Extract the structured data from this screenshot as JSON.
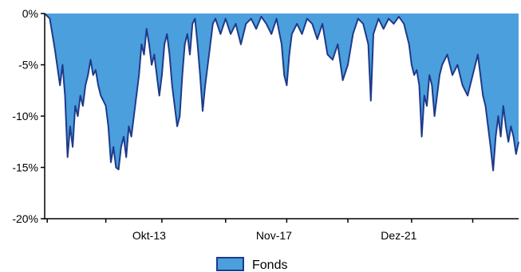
{
  "chart_data": {
    "type": "area",
    "title": "",
    "xlabel": "",
    "ylabel": "",
    "ylim": [
      -20,
      0
    ],
    "grid": false,
    "legend_position": "bottom-center",
    "y_ticks": [
      {
        "value": 0,
        "label": "0%"
      },
      {
        "value": -5,
        "label": "-5%"
      },
      {
        "value": -10,
        "label": "-10%"
      },
      {
        "value": -15,
        "label": "-15%"
      },
      {
        "value": -20,
        "label": "-20%"
      }
    ],
    "x_ticks": [
      {
        "date": "2013-10",
        "label": "Okt-13"
      },
      {
        "date": "2017-11",
        "label": "Nov-17"
      },
      {
        "date": "2021-12",
        "label": "Dez-21"
      }
    ],
    "x_minor_ticks": [
      "2010-01",
      "2011-12",
      "2015-11",
      "2019-11",
      "2023-12"
    ],
    "xlim": [
      "2009-12",
      "2025-06"
    ],
    "series": [
      {
        "name": "Fonds",
        "fill_color": "#4a9fdc",
        "line_color": "#1f3a8a",
        "points": [
          [
            "2009-12",
            0
          ],
          [
            "2010-02",
            -0.5
          ],
          [
            "2010-04",
            -3.5
          ],
          [
            "2010-06",
            -7
          ],
          [
            "2010-07",
            -5
          ],
          [
            "2010-08",
            -8
          ],
          [
            "2010-09",
            -14
          ],
          [
            "2010-10",
            -11
          ],
          [
            "2010-11",
            -13
          ],
          [
            "2010-12",
            -9
          ],
          [
            "2011-01",
            -10
          ],
          [
            "2011-02",
            -8
          ],
          [
            "2011-03",
            -9
          ],
          [
            "2011-04",
            -7
          ],
          [
            "2011-05",
            -6
          ],
          [
            "2011-06",
            -4.5
          ],
          [
            "2011-07",
            -6
          ],
          [
            "2011-08",
            -5.5
          ],
          [
            "2011-09",
            -7
          ],
          [
            "2011-10",
            -8
          ],
          [
            "2011-11",
            -8.5
          ],
          [
            "2011-12",
            -9
          ],
          [
            "2012-01",
            -11
          ],
          [
            "2012-02",
            -14.5
          ],
          [
            "2012-03",
            -13
          ],
          [
            "2012-04",
            -15
          ],
          [
            "2012-05",
            -15.2
          ],
          [
            "2012-06",
            -13
          ],
          [
            "2012-07",
            -12
          ],
          [
            "2012-08",
            -14
          ],
          [
            "2012-09",
            -11
          ],
          [
            "2012-10",
            -12
          ],
          [
            "2012-11",
            -10
          ],
          [
            "2012-12",
            -8
          ],
          [
            "2013-01",
            -6
          ],
          [
            "2013-02",
            -3
          ],
          [
            "2013-03",
            -4
          ],
          [
            "2013-04",
            -1.5
          ],
          [
            "2013-05",
            -3
          ],
          [
            "2013-06",
            -5
          ],
          [
            "2013-07",
            -4
          ],
          [
            "2013-08",
            -6
          ],
          [
            "2013-09",
            -8
          ],
          [
            "2013-10",
            -6
          ],
          [
            "2013-11",
            -3
          ],
          [
            "2013-12",
            -2
          ],
          [
            "2014-01",
            -4
          ],
          [
            "2014-02",
            -7
          ],
          [
            "2014-03",
            -9
          ],
          [
            "2014-04",
            -11
          ],
          [
            "2014-05",
            -10
          ],
          [
            "2014-06",
            -6
          ],
          [
            "2014-07",
            -3
          ],
          [
            "2014-08",
            -2
          ],
          [
            "2014-09",
            -4
          ],
          [
            "2014-10",
            -1
          ],
          [
            "2014-11",
            -0.5
          ],
          [
            "2014-12",
            -3
          ],
          [
            "2015-01",
            -6
          ],
          [
            "2015-02",
            -9.5
          ],
          [
            "2015-03",
            -7
          ],
          [
            "2015-04",
            -5
          ],
          [
            "2015-05",
            -3
          ],
          [
            "2015-06",
            -1
          ],
          [
            "2015-07",
            -0.5
          ],
          [
            "2015-09",
            -2
          ],
          [
            "2015-11",
            -0.5
          ],
          [
            "2016-01",
            -2
          ],
          [
            "2016-03",
            -1
          ],
          [
            "2016-05",
            -3
          ],
          [
            "2016-07",
            -1
          ],
          [
            "2016-09",
            -0.5
          ],
          [
            "2016-11",
            -1.5
          ],
          [
            "2017-01",
            -0.3
          ],
          [
            "2017-03",
            -1
          ],
          [
            "2017-05",
            -2
          ],
          [
            "2017-07",
            -0.5
          ],
          [
            "2017-09",
            -3
          ],
          [
            "2017-10",
            -6
          ],
          [
            "2017-11",
            -7
          ],
          [
            "2017-12",
            -4
          ],
          [
            "2018-01",
            -2
          ],
          [
            "2018-03",
            -1
          ],
          [
            "2018-05",
            -2
          ],
          [
            "2018-07",
            -0.5
          ],
          [
            "2018-09",
            -1
          ],
          [
            "2018-11",
            -2.5
          ],
          [
            "2019-01",
            -1
          ],
          [
            "2019-03",
            -4
          ],
          [
            "2019-05",
            -4.5
          ],
          [
            "2019-07",
            -3
          ],
          [
            "2019-09",
            -6.5
          ],
          [
            "2019-11",
            -5
          ],
          [
            "2020-01",
            -2
          ],
          [
            "2020-03",
            -0.5
          ],
          [
            "2020-05",
            -1
          ],
          [
            "2020-07",
            -3
          ],
          [
            "2020-08",
            -8.5
          ],
          [
            "2020-09",
            -2
          ],
          [
            "2020-11",
            -0.5
          ],
          [
            "2021-01",
            -1.5
          ],
          [
            "2021-03",
            -0.5
          ],
          [
            "2021-05",
            -1
          ],
          [
            "2021-07",
            -0.3
          ],
          [
            "2021-09",
            -1
          ],
          [
            "2021-11",
            -3
          ],
          [
            "2021-12",
            -5
          ],
          [
            "2022-01",
            -6
          ],
          [
            "2022-02",
            -5.5
          ],
          [
            "2022-03",
            -7
          ],
          [
            "2022-04",
            -12
          ],
          [
            "2022-05",
            -8
          ],
          [
            "2022-06",
            -9
          ],
          [
            "2022-07",
            -6
          ],
          [
            "2022-08",
            -7
          ],
          [
            "2022-09",
            -10
          ],
          [
            "2022-10",
            -8
          ],
          [
            "2022-11",
            -6
          ],
          [
            "2022-12",
            -5
          ],
          [
            "2023-02",
            -4
          ],
          [
            "2023-04",
            -6
          ],
          [
            "2023-06",
            -5
          ],
          [
            "2023-08",
            -7
          ],
          [
            "2023-10",
            -8
          ],
          [
            "2023-12",
            -6
          ],
          [
            "2024-02",
            -4
          ],
          [
            "2024-03",
            -6
          ],
          [
            "2024-04",
            -8
          ],
          [
            "2024-05",
            -9
          ],
          [
            "2024-06",
            -11
          ],
          [
            "2024-07",
            -13
          ],
          [
            "2024-08",
            -15.3
          ],
          [
            "2024-09",
            -12
          ],
          [
            "2024-10",
            -10
          ],
          [
            "2024-11",
            -12
          ],
          [
            "2024-12",
            -9
          ],
          [
            "2025-01",
            -11
          ],
          [
            "2025-02",
            -12.5
          ],
          [
            "2025-03",
            -11
          ],
          [
            "2025-04",
            -12
          ],
          [
            "2025-05",
            -13.7
          ],
          [
            "2025-06",
            -12.5
          ]
        ]
      }
    ]
  }
}
